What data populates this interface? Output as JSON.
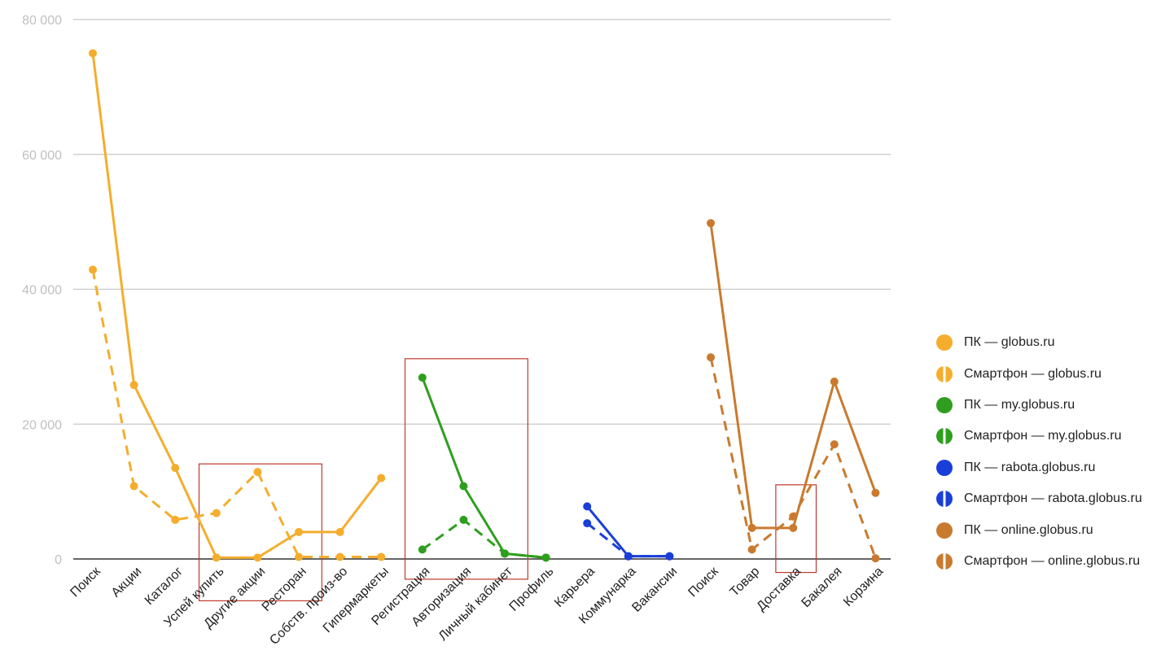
{
  "chart_data": {
    "type": "line",
    "title": "",
    "xlabel": "",
    "ylabel": "",
    "ylim": [
      0,
      80000
    ],
    "yticks": [
      {
        "value": 0,
        "label": "0"
      },
      {
        "value": 20000,
        "label": "20 000"
      },
      {
        "value": 40000,
        "label": "40 000"
      },
      {
        "value": 60000,
        "label": "60 000"
      },
      {
        "value": 80000,
        "label": "80 000"
      }
    ],
    "grid": true,
    "legend_position": "right",
    "categories": [
      "Поиск",
      "Акции",
      "Каталог",
      "Успей купить",
      "Другие акции",
      "Ресторан",
      "Собств. произ-во",
      "Гипермаркеты",
      "Регистрация",
      "Авторизация",
      "Личный кабинет",
      "Профиль",
      "Карьера",
      "Коммунарка",
      "Вакансии",
      "Поиск",
      "Товар",
      "Доставка",
      "Бакалея",
      "Корзина"
    ],
    "series": [
      {
        "name": "ПК — globus.ru",
        "color": "#f5ad2d",
        "dashed": false,
        "values": [
          75000,
          25800,
          13500,
          200,
          200,
          4000,
          4000,
          12000,
          null,
          null,
          null,
          null,
          null,
          null,
          null,
          null,
          null,
          null,
          null,
          null
        ]
      },
      {
        "name": "Смартфон — globus.ru",
        "color": "#f5ad2d",
        "dashed": true,
        "values": [
          42900,
          10800,
          5800,
          6800,
          12900,
          300,
          300,
          300,
          null,
          null,
          null,
          null,
          null,
          null,
          null,
          null,
          null,
          null,
          null,
          null
        ]
      },
      {
        "name": "ПК — my.globus.ru",
        "color": "#2f9e1f",
        "dashed": false,
        "values": [
          null,
          null,
          null,
          null,
          null,
          null,
          null,
          null,
          26900,
          10800,
          800,
          200,
          null,
          null,
          null,
          null,
          null,
          null,
          null,
          null
        ]
      },
      {
        "name": "Смартфон — my.globus.ru",
        "color": "#2f9e1f",
        "dashed": true,
        "values": [
          null,
          null,
          null,
          null,
          null,
          null,
          null,
          null,
          1400,
          5800,
          800,
          200,
          null,
          null,
          null,
          null,
          null,
          null,
          null,
          null
        ]
      },
      {
        "name": "ПК — rabota.globus.ru",
        "color": "#1a3ed8",
        "dashed": false,
        "values": [
          null,
          null,
          null,
          null,
          null,
          null,
          null,
          null,
          null,
          null,
          null,
          null,
          7800,
          400,
          400,
          null,
          null,
          null,
          null,
          null
        ]
      },
      {
        "name": "Смартфон — rabota.globus.ru",
        "color": "#1a3ed8",
        "dashed": true,
        "values": [
          null,
          null,
          null,
          null,
          null,
          null,
          null,
          null,
          null,
          null,
          null,
          null,
          5300,
          400,
          400,
          null,
          null,
          null,
          null,
          null
        ]
      },
      {
        "name": "ПК — online.globus.ru",
        "color": "#c97a2e",
        "dashed": false,
        "values": [
          null,
          null,
          null,
          null,
          null,
          null,
          null,
          null,
          null,
          null,
          null,
          null,
          null,
          null,
          null,
          49800,
          4600,
          4600,
          26300,
          9800
        ]
      },
      {
        "name": "Смартфон — online.globus.ru",
        "color": "#c97a2e",
        "dashed": true,
        "values": [
          null,
          null,
          null,
          null,
          null,
          null,
          null,
          null,
          null,
          null,
          null,
          null,
          null,
          null,
          null,
          29900,
          1400,
          6300,
          17000,
          100
        ]
      }
    ],
    "annotations": [
      {
        "type": "box",
        "color": "#c0392b",
        "from_category": 3,
        "to_category": 5,
        "y_from": -6200,
        "y_to": 14100
      },
      {
        "type": "box",
        "color": "#c0392b",
        "from_category": 8,
        "to_category": 10,
        "y_from": -3000,
        "y_to": 29700
      },
      {
        "type": "box",
        "color": "#c0392b",
        "from_category": 17,
        "to_category": 17,
        "y_from": -2000,
        "y_to": 11000
      }
    ]
  }
}
